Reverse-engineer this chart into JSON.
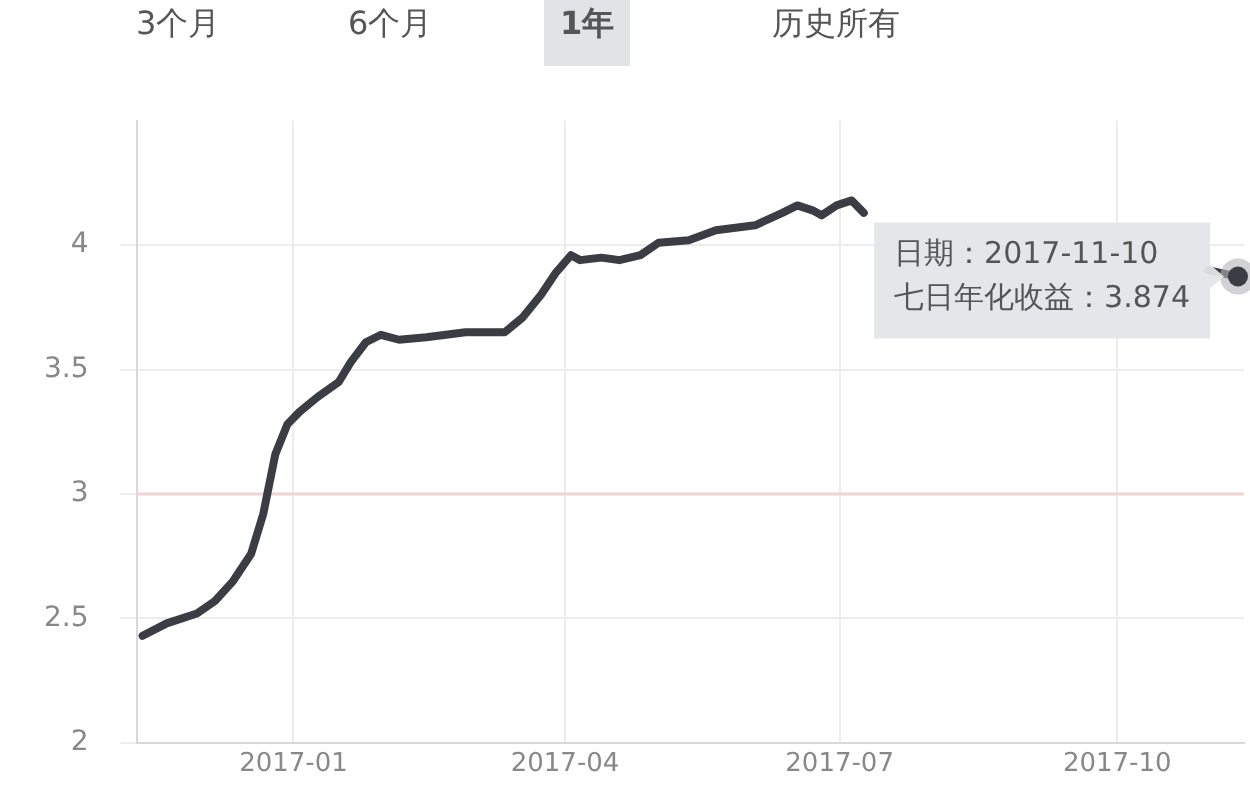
{
  "chart_data": {
    "type": "line",
    "x": [
      "2016-11-12",
      "2016-11-20",
      "2016-11-30",
      "2016-12-06",
      "2016-12-12",
      "2016-12-18",
      "2016-12-22",
      "2016-12-26",
      "2016-12-30",
      "2017-01-03",
      "2017-01-09",
      "2017-01-16",
      "2017-01-20",
      "2017-01-25",
      "2017-01-30",
      "2017-02-05",
      "2017-02-14",
      "2017-02-27",
      "2017-03-07",
      "2017-03-12",
      "2017-03-18",
      "2017-03-24",
      "2017-03-29",
      "2017-04-03",
      "2017-04-06",
      "2017-04-13",
      "2017-04-19",
      "2017-04-26",
      "2017-05-02",
      "2017-05-12",
      "2017-05-21",
      "2017-06-03",
      "2017-06-12",
      "2017-06-17",
      "2017-06-22",
      "2017-06-25",
      "2017-06-30",
      "2017-07-05",
      "2017-07-09",
      "2017-07-15",
      "2017-10-31",
      "2017-11-10"
    ],
    "series": [
      {
        "color": "#3a3d44",
        "values": [
          2.43,
          2.48,
          2.52,
          2.57,
          2.65,
          2.76,
          2.92,
          3.16,
          3.28,
          3.33,
          3.39,
          3.45,
          3.53,
          3.61,
          3.64,
          3.62,
          3.63,
          3.65,
          3.65,
          3.65,
          3.71,
          3.8,
          3.89,
          3.96,
          3.94,
          3.95,
          3.94,
          3.96,
          4.01,
          4.02,
          4.06,
          4.08,
          4.13,
          4.16,
          4.14,
          4.12,
          4.16,
          4.18,
          4.13,
          null,
          3.9,
          3.874
        ]
      }
    ],
    "xlim": [
      "2016-11-10",
      "2017-11-12"
    ],
    "xticks": [
      "2017-01",
      "2017-04",
      "2017-07",
      "2017-10"
    ],
    "ylim": [
      2,
      4.5
    ],
    "yticks": [
      2,
      2.5,
      3,
      3.5,
      4
    ],
    "grid": true,
    "legend": false,
    "marker": "none",
    "line_style": "solid",
    "ref_lines": [
      {
        "axis": "y",
        "value": 3,
        "color": "#f0d4d6"
      }
    ],
    "annotations": [
      "3个月",
      "6个月",
      "1年",
      "历史所有",
      {
        "text": "日期：2017-11-10\n七日年化收益：3.874",
        "x": "2017-11-10",
        "y": 3.874
      }
    ]
  }
}
